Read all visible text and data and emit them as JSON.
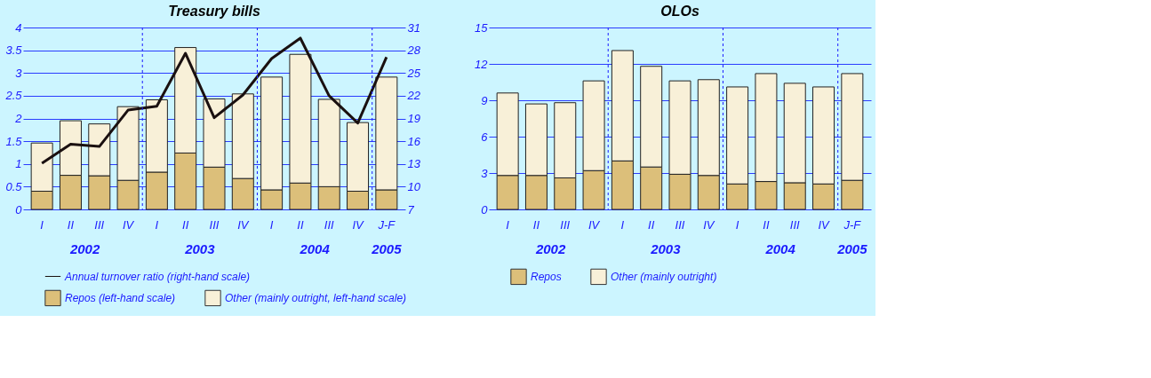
{
  "chart_data": [
    {
      "type": "bar",
      "title": "Treasury bills",
      "stacked": true,
      "categories": [
        "I",
        "II",
        "III",
        "IV",
        "I",
        "II",
        "III",
        "IV",
        "I",
        "II",
        "III",
        "IV",
        "J-F"
      ],
      "series": [
        {
          "name": "Repos (left-hand scale)",
          "color": "#dcbf7a",
          "values": [
            0.4,
            0.75,
            0.74,
            0.64,
            0.82,
            1.24,
            0.93,
            0.68,
            0.43,
            0.58,
            0.5,
            0.4,
            0.43
          ]
        },
        {
          "name": "Other (mainly outright, left-hand scale)",
          "color": "#f8f0d8",
          "values": [
            1.06,
            1.2,
            1.14,
            1.62,
            1.59,
            2.32,
            1.5,
            1.86,
            2.48,
            2.83,
            1.92,
            1.51,
            2.48
          ]
        },
        {
          "name": "Annual turnover ratio (right-hand scale)",
          "color": "#1a1010",
          "type": "line",
          "axis": "y2",
          "values": [
            13.1,
            15.6,
            15.3,
            20.1,
            20.6,
            27.6,
            19.1,
            22.1,
            26.9,
            29.6,
            22.0,
            18.4,
            27.1
          ]
        }
      ],
      "ylim": [
        0,
        4
      ],
      "yticks": [
        0,
        0.5,
        1,
        1.5,
        2,
        2.5,
        3,
        3.5,
        4
      ],
      "y2lim": [
        7,
        31
      ],
      "y2ticks": [
        7,
        10,
        13,
        16,
        19,
        22,
        25,
        28,
        31
      ],
      "annotations": [
        "2002",
        "2003",
        "2004",
        "2005"
      ],
      "grid": "y",
      "legend": "bottom"
    },
    {
      "type": "bar",
      "title": "OLOs",
      "stacked": true,
      "categories": [
        "I",
        "II",
        "III",
        "IV",
        "I",
        "II",
        "III",
        "IV",
        "I",
        "II",
        "III",
        "IV",
        "J-F"
      ],
      "series": [
        {
          "name": "Repos",
          "color": "#dcbf7a",
          "values": [
            2.8,
            2.8,
            2.6,
            3.2,
            4.0,
            3.5,
            2.9,
            2.8,
            2.1,
            2.3,
            2.2,
            2.1,
            2.4
          ]
        },
        {
          "name": "Other (mainly outright)",
          "color": "#f8f0d8",
          "values": [
            6.8,
            5.9,
            6.2,
            7.4,
            9.1,
            8.3,
            7.7,
            7.9,
            8.0,
            8.9,
            8.2,
            8.0,
            8.8
          ]
        }
      ],
      "ylim": [
        0,
        15
      ],
      "yticks": [
        0,
        3,
        6,
        9,
        12,
        15
      ],
      "annotations": [
        "2002",
        "2003",
        "2004",
        "2005"
      ],
      "grid": "y",
      "legend": "bottom"
    }
  ]
}
